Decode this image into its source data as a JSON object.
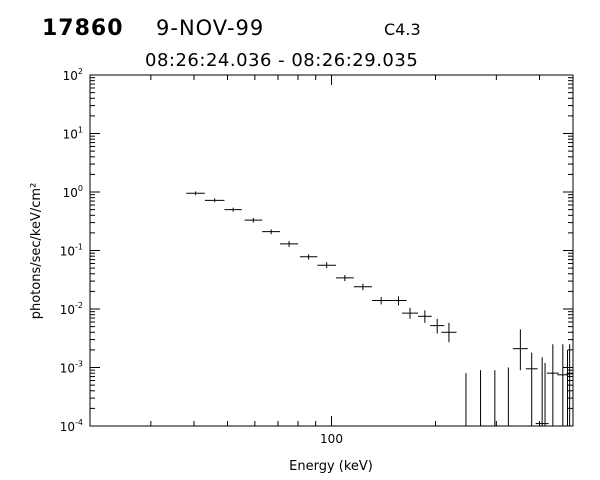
{
  "header": {
    "event_id": "17860",
    "date": "9-NOV-99",
    "goes_class": "C4.3",
    "time_range": "08:26:24.036 - 08:26:29.035"
  },
  "chart_data": {
    "type": "scatter",
    "title": "",
    "xlabel": "Energy (keV)",
    "ylabel": "photons/sec/keV/cm²",
    "xscale": "log",
    "yscale": "log",
    "xlim": [
      20,
      500
    ],
    "ylim": [
      0.0001,
      100
    ],
    "x_tick_labels": [
      {
        "value": 100,
        "label": "100"
      }
    ],
    "y_tick_labels": [
      {
        "value": 0.0001,
        "base": "10",
        "exp": "-4"
      },
      {
        "value": 0.001,
        "base": "10",
        "exp": "-3"
      },
      {
        "value": 0.01,
        "base": "10",
        "exp": "-2"
      },
      {
        "value": 0.1,
        "base": "10",
        "exp": "-1"
      },
      {
        "value": 1,
        "base": "10",
        "exp": "0"
      },
      {
        "value": 10,
        "base": "10",
        "exp": "1"
      },
      {
        "value": 100,
        "base": "10",
        "exp": "2"
      }
    ],
    "grid": false,
    "points": [
      {
        "xlo": 38,
        "xhi": 43,
        "y": 0.95,
        "ylo": 0.88,
        "yhi": 1.02
      },
      {
        "xlo": 43,
        "xhi": 49,
        "y": 0.72,
        "ylo": 0.67,
        "yhi": 0.78
      },
      {
        "xlo": 49,
        "xhi": 55,
        "y": 0.5,
        "ylo": 0.46,
        "yhi": 0.54
      },
      {
        "xlo": 56,
        "xhi": 63,
        "y": 0.33,
        "ylo": 0.3,
        "yhi": 0.36
      },
      {
        "xlo": 63,
        "xhi": 71,
        "y": 0.21,
        "ylo": 0.19,
        "yhi": 0.23
      },
      {
        "xlo": 71,
        "xhi": 80,
        "y": 0.13,
        "ylo": 0.115,
        "yhi": 0.145
      },
      {
        "xlo": 81,
        "xhi": 91,
        "y": 0.078,
        "ylo": 0.07,
        "yhi": 0.086
      },
      {
        "xlo": 91,
        "xhi": 103,
        "y": 0.056,
        "ylo": 0.05,
        "yhi": 0.063
      },
      {
        "xlo": 103,
        "xhi": 116,
        "y": 0.034,
        "ylo": 0.03,
        "yhi": 0.038
      },
      {
        "xlo": 116,
        "xhi": 131,
        "y": 0.024,
        "ylo": 0.021,
        "yhi": 0.027
      },
      {
        "xlo": 131,
        "xhi": 148,
        "y": 0.014,
        "ylo": 0.012,
        "yhi": 0.016
      },
      {
        "xlo": 148,
        "xhi": 165,
        "y": 0.014,
        "ylo": 0.0115,
        "yhi": 0.0165
      },
      {
        "xlo": 160,
        "xhi": 178,
        "y": 0.0085,
        "ylo": 0.0068,
        "yhi": 0.0105
      },
      {
        "xlo": 178,
        "xhi": 195,
        "y": 0.0075,
        "ylo": 0.0058,
        "yhi": 0.0095
      },
      {
        "xlo": 193,
        "xhi": 212,
        "y": 0.0052,
        "ylo": 0.0038,
        "yhi": 0.0068
      },
      {
        "xlo": 208,
        "xhi": 230,
        "y": 0.004,
        "ylo": 0.0027,
        "yhi": 0.0058
      },
      {
        "x": 245,
        "y": 0.0001,
        "ylo": 0.0001,
        "yhi": 0.0008
      },
      {
        "x": 270,
        "y": 0.0001,
        "ylo": 0.0001,
        "yhi": 0.0009
      },
      {
        "x": 297,
        "y": 0.0001,
        "ylo": 0.0001,
        "yhi": 0.0009
      },
      {
        "x": 325,
        "y": 0.0001,
        "ylo": 0.0001,
        "yhi": 0.001
      },
      {
        "xlo": 335,
        "xhi": 370,
        "y": 0.0021,
        "ylo": 0.0009,
        "yhi": 0.0045
      },
      {
        "xlo": 365,
        "xhi": 395,
        "y": 0.00095,
        "ylo": 0.0001,
        "yhi": 0.0018
      },
      {
        "xlo": 390,
        "xhi": 425,
        "y": 0.00011,
        "ylo": 0.0001,
        "yhi": 0.0015
      },
      {
        "x": 415,
        "y": 0.0001,
        "ylo": 0.0001,
        "yhi": 0.0012
      },
      {
        "xlo": 420,
        "xhi": 455,
        "y": 0.0008,
        "ylo": 0.0001,
        "yhi": 0.0025
      },
      {
        "xlo": 450,
        "xhi": 485,
        "y": 0.00075,
        "ylo": 0.0001,
        "yhi": 0.0025
      },
      {
        "x": 482,
        "y": 0.0001,
        "ylo": 0.0001,
        "yhi": 0.002
      },
      {
        "xlo": 478,
        "xhi": 500,
        "y": 0.00078,
        "ylo": 0.0001,
        "yhi": 0.0025
      }
    ]
  }
}
